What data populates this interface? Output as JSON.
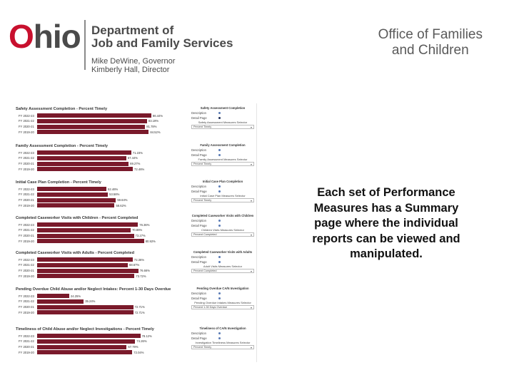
{
  "header": {
    "logo_text_o": "O",
    "logo_text_rest": "hio",
    "dept_line1": "Department of",
    "dept_line2": "Job and Family Services",
    "governor": "Mike DeWine, Governor",
    "director": "Kimberly Hall, Director",
    "office_line1": "Office of Families",
    "office_line2": "and Children"
  },
  "caption": "Each set of Performance Measures has a Summary page where the individual reports can be viewed and manipulated.",
  "colors": {
    "bar": "#7a1a2b",
    "logo_red": "#c8102e",
    "logo_gray": "#4a4a4a"
  },
  "report": {
    "sections": [
      {
        "title": "Safety Assessment Completion - Percent Timely",
        "rows": [
          {
            "label": "FY 2022-23",
            "value": 0.8644,
            "text": "86.44%"
          },
          {
            "label": "FY 2021-22",
            "value": 0.8319,
            "text": "83.19%"
          },
          {
            "label": "FY 2020-21",
            "value": 0.8178,
            "text": "81.78%"
          },
          {
            "label": "FY 2019-20",
            "value": 0.8452,
            "text": "84.52%"
          }
        ]
      },
      {
        "title": "Family Assessment Completion - Percent Timely",
        "rows": [
          {
            "label": "FY 2022-23",
            "value": 0.7123,
            "text": "71.23%"
          },
          {
            "label": "FY 2021-22",
            "value": 0.6744,
            "text": "67.44%"
          },
          {
            "label": "FY 2020-21",
            "value": 0.6927,
            "text": "69.27%"
          },
          {
            "label": "FY 2019-20",
            "value": 0.7246,
            "text": "72.46%"
          }
        ]
      },
      {
        "title": "Initial Case Plan Completion - Percent Timely",
        "rows": [
          {
            "label": "FY 2022-23",
            "value": 0.5246,
            "text": "52.46%"
          },
          {
            "label": "FY 2021-22",
            "value": 0.5358,
            "text": "53.58%"
          },
          {
            "label": "FY 2020-21",
            "value": 0.5964,
            "text": "59.64%"
          },
          {
            "label": "FY 2019-20",
            "value": 0.5862,
            "text": "58.62%"
          }
        ]
      },
      {
        "title": "Completed Caseworker Visits with Children - Percent Completed",
        "rows": [
          {
            "label": "FY 2022-23",
            "value": 0.7636,
            "text": "76.36%"
          },
          {
            "label": "FY 2021-22",
            "value": 0.7086,
            "text": "70.86%"
          },
          {
            "label": "FY 2020-21",
            "value": 0.7327,
            "text": "73.27%"
          },
          {
            "label": "FY 2019-20",
            "value": 0.8092,
            "text": "80.92%"
          }
        ]
      },
      {
        "title": "Completed Caseworker Visits with Adults - Percent Completed",
        "rows": [
          {
            "label": "FY 2022-23",
            "value": 0.7236,
            "text": "72.36%"
          },
          {
            "label": "FY 2021-22",
            "value": 0.6867,
            "text": "68.67%"
          },
          {
            "label": "FY 2020-21",
            "value": 0.7666,
            "text": "76.66%"
          },
          {
            "label": "FY 2019-20",
            "value": 0.7372,
            "text": "73.72%"
          }
        ]
      },
      {
        "title": "Pending Overdue Child Abuse and/or Neglect Intakes: Percent 1-30 Days Overdue",
        "rows": [
          {
            "label": "FY 2022-23",
            "value": 0.2425,
            "text": "24.25%"
          },
          {
            "label": "FY 2021-22",
            "value": 0.3524,
            "text": "35.24%"
          },
          {
            "label": "FY 2020-21",
            "value": 0.7271,
            "text": "72.71%"
          },
          {
            "label": "FY 2019-20",
            "value": 0.7271,
            "text": "72.71%"
          }
        ]
      },
      {
        "title": "Timeliness of Child Abuse and/or Neglect Investigations - Percent Timely",
        "rows": [
          {
            "label": "FY 2022-23",
            "value": 0.7812,
            "text": "78.12%"
          },
          {
            "label": "FY 2021-22",
            "value": 0.7426,
            "text": "74.26%"
          },
          {
            "label": "FY 2020-21",
            "value": 0.6779,
            "text": "67.79%"
          },
          {
            "label": "FY 2019-20",
            "value": 0.7204,
            "text": "72.04%"
          }
        ]
      }
    ],
    "panels": [
      {
        "title": "Safety Assessment Completion",
        "description": "Description",
        "detail": "Detail Page",
        "selector": "Safety Assessment Measures Selector",
        "option": "Percent Timely",
        "detail_selected": true
      },
      {
        "title": "Family Assessment Completion",
        "description": "Description",
        "detail": "Detail Page",
        "selector": "Family Assessment Measures Selector",
        "option": "Percent Timely",
        "detail_selected": false
      },
      {
        "title": "Initial Case Plan Completion",
        "description": "Description",
        "detail": "Detail Page",
        "selector": "Initial Case Plan Measures Selector",
        "option": "Percent Timely",
        "detail_selected": false
      },
      {
        "title": "Completed Caseworker Visits with Children",
        "description": "Description",
        "detail": "Detail Page",
        "selector": "Children Visits Measures Selector",
        "option": "Percent Completed",
        "detail_selected": false
      },
      {
        "title": "Completed Caseworker Visits with Adults",
        "description": "Description",
        "detail": "Detail Page",
        "selector": "Adult Visits Measures Selector",
        "option": "Percent Completed",
        "detail_selected": false
      },
      {
        "title": "Pending Overdue CA/N Investigation",
        "description": "Description",
        "detail": "Detail Page",
        "selector": "Pending Overdue Intakes Measures Selector",
        "option": "Percent 1-30 Days Overdue",
        "detail_selected": false
      },
      {
        "title": "Timeliness of CA/N Investigation",
        "description": "Description",
        "detail": "Detail Page",
        "selector": "Investigation Timeliness Measures Selector",
        "option": "Percent Timely",
        "detail_selected": false
      }
    ]
  }
}
